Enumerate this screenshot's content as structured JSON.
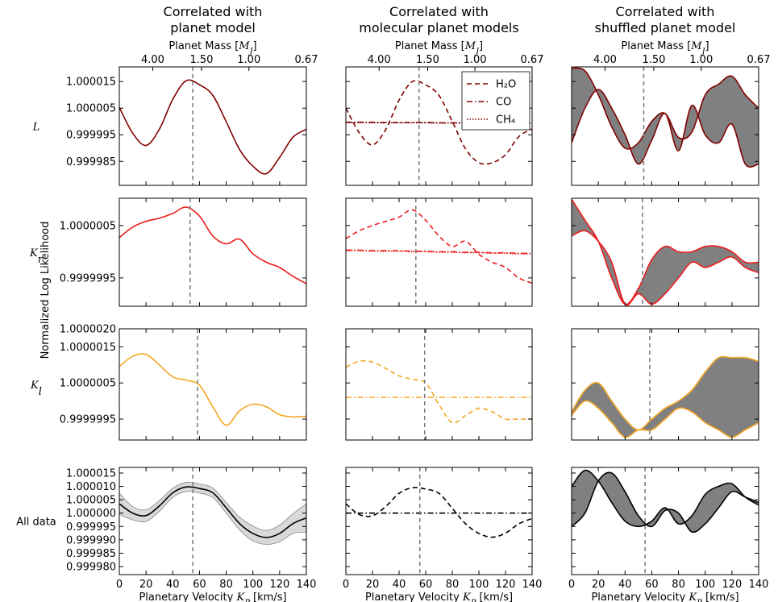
{
  "chart_data": {
    "type": "line",
    "ylabel": "Normalized Log Likelihood",
    "xlabel": [
      "Planetary Velocity ",
      "K",
      "P",
      " [km/s]"
    ],
    "x2label": [
      "Planet Mass [",
      "M",
      "J",
      "]"
    ],
    "x": [
      0,
      10,
      20,
      30,
      40,
      50,
      60,
      70,
      80,
      90,
      100,
      110,
      120,
      130,
      140
    ],
    "xlim": [
      0,
      140
    ],
    "xticks": [
      0,
      20,
      40,
      60,
      80,
      100,
      120,
      140
    ],
    "x2ticks": [
      {
        "value": 25,
        "label": "4.00"
      },
      {
        "value": 61.5,
        "label": "1.50"
      },
      {
        "value": 97,
        "label": "1.00"
      },
      {
        "value": 140,
        "label": "0.67"
      }
    ],
    "columns": [
      {
        "title": [
          "Correlated with",
          "planet model"
        ]
      },
      {
        "title": [
          "Correlated with",
          "molecular planet models"
        ]
      },
      {
        "title": [
          "Correlated with",
          "shuffled planet model"
        ]
      }
    ],
    "rows": [
      {
        "label": "L",
        "ylim": [
          0.999976,
          1.0000205
        ],
        "yticks": [
          0.999985,
          0.999995,
          1.000005,
          1.000015
        ],
        "panels": [
          {
            "vline": 55,
            "series": [
              {
                "color": "#800000",
                "linestyle": "solid",
                "values": [
                  1.0000053,
                  0.9999956,
                  0.999991,
                  0.9999971,
                  1.0000083,
                  1.0000153,
                  1.0000138,
                  1.0000098,
                  0.9999999,
                  0.9999895,
                  0.9999832,
                  0.9999804,
                  0.9999865,
                  0.9999941,
                  0.9999971
                ]
              }
            ]
          },
          {
            "vline": 55,
            "series": [
              {
                "name": "H₂O",
                "color": "#800000",
                "linestyle": "dashed",
                "values": [
                  1.000005,
                  0.9999958,
                  0.9999912,
                  0.999997,
                  1.000008,
                  1.000015,
                  1.0000137,
                  1.0000098,
                  1.0,
                  0.9999897,
                  0.9999845,
                  0.9999845,
                  0.9999875,
                  0.9999943,
                  0.9999972
                ]
              },
              {
                "name": "CO",
                "color": "#800000",
                "linestyle": "dashdot",
                "values": [
                  0.9999997,
                  0.9999997,
                  0.9999997,
                  0.9999996,
                  0.9999996,
                  0.9999996,
                  0.9999996,
                  0.9999995,
                  0.9999995,
                  0.9999995,
                  0.9999995,
                  0.9999994,
                  0.9999994,
                  0.9999994,
                  0.9999994
                ]
              },
              {
                "name": "CH₄",
                "color": "#800000",
                "linestyle": "dotted",
                "values": [
                  0.9999996,
                  0.9999996,
                  0.9999995,
                  0.9999995,
                  0.9999995,
                  0.9999995,
                  0.9999995,
                  0.9999994,
                  0.9999994,
                  0.9999994,
                  0.9999994,
                  0.9999993,
                  0.9999993,
                  0.9999993,
                  0.9999993
                ]
              }
            ]
          },
          {
            "vline": 54,
            "fill": "#808080",
            "series": [
              {
                "color": "#800000",
                "linestyle": "solid",
                "values": [
                  1.00002,
                  1.000019,
                  1.00001,
                  0.999998,
                  0.99999,
                  0.999992,
                  1.0,
                  1.000003,
                  0.999994,
                  0.999996,
                  1.00001,
                  1.000014,
                  1.000017,
                  1.00001,
                  1.000005
                ]
              },
              {
                "color": "#800000",
                "linestyle": "solid",
                "values": [
                  0.999992,
                  1.000005,
                  1.000012,
                  1.000005,
                  0.999995,
                  0.999984,
                  0.999993,
                  1.000003,
                  0.999989,
                  1.000006,
                  0.999995,
                  0.999992,
                  0.999999,
                  0.999984,
                  0.999984
                ]
              }
            ]
          }
        ]
      },
      {
        "label": "K",
        "sub": "r",
        "ylim": [
          0.99999896,
          1.00000102
        ],
        "yticks": [
          0.9999995,
          1.0000005
        ],
        "panels": [
          {
            "vline": 53,
            "series": [
              {
                "color": "#ee1c1c",
                "linestyle": "solid",
                "values": [
                  1.00000027,
                  1.00000047,
                  1.00000058,
                  1.00000064,
                  1.00000073,
                  1.00000085,
                  1.00000068,
                  1.0000003,
                  1.00000015,
                  1.00000024,
                  0.99999996,
                  0.9999998,
                  0.9999997,
                  0.99999953,
                  0.99999939
                ]
              }
            ]
          },
          {
            "vline": 52.6,
            "series": [
              {
                "color": "#ee1c1c",
                "linestyle": "dashed",
                "values": [
                  1.00000025,
                  1.0000004,
                  1.0000005,
                  1.00000058,
                  1.00000066,
                  1.0000008,
                  1.0000006,
                  1.0000003,
                  1.0000001,
                  1.0000002,
                  0.99999995,
                  0.9999998,
                  0.9999997,
                  0.9999995,
                  0.9999994
                ]
              },
              {
                "color": "#ee1c1c",
                "linestyle": "dashdot",
                "values": [
                  1.00000003,
                  1.00000003,
                  1.00000002,
                  1.00000002,
                  1.00000002,
                  1.00000001,
                  1.00000001,
                  1.0,
                  1.0,
                  0.99999999,
                  0.99999999,
                  0.99999998,
                  0.99999998,
                  0.99999997,
                  0.99999997
                ]
              },
              {
                "color": "#ee1c1c",
                "linestyle": "dotted",
                "values": [
                  1.00000002,
                  1.00000002,
                  1.00000001,
                  1.00000001,
                  1.00000001,
                  1.0,
                  1.0,
                  0.99999999,
                  0.99999999,
                  0.99999998,
                  0.99999998,
                  0.99999997,
                  0.99999997,
                  0.99999996,
                  0.99999996
                ]
              }
            ]
          },
          {
            "vline": 53,
            "fill": "#808080",
            "series": [
              {
                "color": "#ee1c1c",
                "linestyle": "solid",
                "values": [
                  1.000001,
                  1.0000006,
                  1.0000002,
                  0.9999995,
                  0.999999,
                  0.9999993,
                  0.99999985,
                  1.0000001,
                  1.0,
                  1.0,
                  1.0000001,
                  1.0000001,
                  1.0,
                  0.9999998,
                  0.9999998
                ]
              },
              {
                "color": "#ee1c1c",
                "linestyle": "solid",
                "values": [
                  1.0000003,
                  1.0000004,
                  1.0000002,
                  0.9999998,
                  0.999999,
                  0.9999992,
                  0.999999,
                  0.9999992,
                  0.9999995,
                  0.9999998,
                  0.9999997,
                  0.9999998,
                  0.9999999,
                  0.9999997,
                  0.9999996
                ]
              }
            ]
          }
        ]
      },
      {
        "label": "K",
        "sub": "l",
        "ylim": [
          0.99999892,
          1.000002
        ],
        "yticks": [
          {
            "value": 1.000002,
            "label": "1.0000020"
          },
          1.0000015,
          1.0000005,
          0.9999995
        ],
        "panels": [
          {
            "vline": 58.5,
            "series": [
              {
                "color": "#f5a623",
                "linestyle": "solid",
                "values": [
                  1.00000096,
                  1.00000124,
                  1.00000129,
                  1.000001,
                  1.00000067,
                  1.00000058,
                  1.00000044,
                  0.99999984,
                  0.99999933,
                  0.99999973,
                  0.99999991,
                  0.99999984,
                  0.99999962,
                  0.99999956,
                  0.99999958
                ]
              }
            ]
          },
          {
            "vline": 59.2,
            "series": [
              {
                "color": "#f5a623",
                "linestyle": "dashed",
                "values": [
                  1.00000094,
                  1.0000011,
                  1.00000108,
                  1.0000009,
                  1.0000007,
                  1.0000006,
                  1.0000005,
                  0.9999999,
                  0.9999994,
                  0.9999996,
                  0.9999998,
                  0.9999997,
                  0.9999995,
                  0.9999995,
                  0.9999995
                ]
              },
              {
                "color": "#f5a623",
                "linestyle": "dashdot",
                "values": [
                  1.0000001,
                  1.0000001,
                  1.0000001,
                  1.0000001,
                  1.0000001,
                  1.0000001,
                  1.0000001,
                  1.0000001,
                  1.0000001,
                  1.0000001,
                  1.0000001,
                  1.0000001,
                  1.0000001,
                  1.0000001,
                  1.0000001
                ]
              }
            ]
          },
          {
            "vline": 58.5,
            "fill": "#808080",
            "series": [
              {
                "color": "#f5a623",
                "linestyle": "solid",
                "values": [
                  0.9999997,
                  1.0000003,
                  1.0000005,
                  1.0,
                  0.9999995,
                  0.9999992,
                  0.9999995,
                  0.9999998,
                  1.0,
                  1.0000003,
                  1.0000008,
                  1.0000012,
                  1.0000012,
                  1.0000012,
                  1.0000011
                ]
              },
              {
                "color": "#f5a623",
                "linestyle": "solid",
                "values": [
                  0.9999996,
                  1.0,
                  0.9999998,
                  0.9999994,
                  0.999999,
                  0.9999992,
                  0.9999992,
                  0.9999995,
                  0.9999998,
                  0.9999997,
                  0.9999994,
                  0.9999992,
                  0.999999,
                  0.9999992,
                  0.9999994
                ]
              }
            ]
          }
        ]
      },
      {
        "label": "All data",
        "ylim": [
          0.999977,
          1.0000171
        ],
        "yticks": [
          1.000015,
          {
            "value": 1.00001,
            "label": "1.000010"
          },
          1.000005,
          {
            "value": 1,
            "label": "1.000000"
          },
          0.999995,
          {
            "value": 0.99999,
            "label": "0.999990"
          },
          0.999985,
          {
            "value": 0.99998,
            "label": "0.999980"
          }
        ],
        "panels": [
          {
            "vline": 55,
            "series": [
              {
                "color": "#000000",
                "linestyle": "solid",
                "band_color": "#d9d9d9",
                "values": [
                  1.0000035,
                  1.0,
                  0.9999991,
                  1.0000027,
                  1.0000076,
                  1.0000098,
                  1.0000092,
                  1.0000076,
                  1.000002,
                  0.9999961,
                  0.9999924,
                  0.9999909,
                  0.9999924,
                  0.9999961,
                  0.9999982
                ],
                "upper": [
                  1.0000075,
                  1.0000025,
                  1.0000013,
                  1.0000047,
                  1.0000093,
                  1.0000115,
                  1.0000109,
                  1.0000094,
                  1.000004,
                  0.9999985,
                  0.9999952,
                  0.9999935,
                  0.9999955,
                  0.9999998,
                  1.0000035
                ],
                "lower": [
                  0.9999995,
                  0.9999975,
                  0.9999969,
                  1.0000007,
                  1.0000059,
                  1.0000081,
                  1.0000075,
                  1.0000058,
                  1.0,
                  0.9999937,
                  0.9999896,
                  0.9999883,
                  0.9999893,
                  0.9999924,
                  0.9999929
                ]
              }
            ]
          },
          {
            "vline": 55.6,
            "series": [
              {
                "color": "#000000",
                "linestyle": "dashed",
                "values": [
                  1.0000035,
                  0.9999995,
                  0.999999,
                  1.0000025,
                  1.0000074,
                  1.0000095,
                  1.000009,
                  1.0000074,
                  1.0000018,
                  0.999996,
                  0.9999924,
                  0.999991,
                  0.9999925,
                  0.999996,
                  0.999998
                ]
              },
              {
                "color": "#000000",
                "linestyle": "dashdot",
                "values": [
                  1.0,
                  1.0,
                  1.0,
                  1.0,
                  1.0,
                  1.0,
                  1.0,
                  1.0,
                  1.0,
                  1.0,
                  1.0,
                  1.0,
                  1.0,
                  1.0,
                  1.0
                ]
              }
            ]
          },
          {
            "vline": 55,
            "fill": "#808080",
            "series": [
              {
                "color": "#000000",
                "linestyle": "solid",
                "values": [
                  1.00001,
                  1.000016,
                  1.000012,
                  1.000004,
                  0.999997,
                  0.999995,
                  0.999997,
                  1.000002,
                  0.999996,
                  0.999999,
                  1.000007,
                  1.00001,
                  1.000011,
                  1.000006,
                  1.000003
                ]
              },
              {
                "color": "#000000",
                "linestyle": "solid",
                "values": [
                  0.999995,
                  1.0,
                  1.000012,
                  1.000015,
                  1.000008,
                  0.999999,
                  0.999995,
                  1.000001,
                  1.0,
                  0.999993,
                  0.999996,
                  1.000002,
                  1.000008,
                  1.000006,
                  1.000004
                ]
              }
            ]
          }
        ]
      }
    ]
  }
}
